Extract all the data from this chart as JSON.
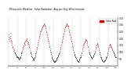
{
  "title": "Milwaukee Weather  Solar Radiation",
  "subtitle": "Avg per Day W/m²/minute",
  "background_color": "#ffffff",
  "grid_color": "#888888",
  "ylim": [
    0,
    350
  ],
  "xlim": [
    0,
    365
  ],
  "legend_label": "Solar Rad",
  "legend_color": "#cc0000",
  "dot_color_red": "#cc0000",
  "dot_color_black": "#000000",
  "month_starts": [
    1,
    32,
    60,
    91,
    121,
    152,
    182,
    213,
    244,
    274,
    305,
    335
  ],
  "yticks": [
    50,
    100,
    150,
    200,
    250,
    300,
    350
  ],
  "solar_data": [
    210,
    195,
    230,
    205,
    185,
    220,
    240,
    200,
    175,
    190,
    165,
    180,
    155,
    140,
    130,
    145,
    120,
    110,
    105,
    125,
    115,
    100,
    90,
    95,
    80,
    85,
    75,
    70,
    65,
    60,
    70,
    65,
    55,
    60,
    50,
    55,
    45,
    50,
    60,
    55,
    65,
    70,
    80,
    90,
    95,
    100,
    110,
    120,
    130,
    140,
    150,
    145,
    160,
    170,
    165,
    155,
    175,
    180,
    185,
    190,
    200,
    195,
    185,
    175,
    165,
    155,
    160,
    170,
    155,
    145,
    135,
    125,
    115,
    105,
    95,
    90,
    85,
    75,
    70,
    65,
    60,
    55,
    50,
    45,
    40,
    45,
    50,
    55,
    60,
    70,
    80,
    90,
    100,
    110,
    120,
    130,
    140,
    150,
    160,
    170,
    180,
    190,
    200,
    210,
    220,
    230,
    240,
    250,
    255,
    260,
    265,
    270,
    275,
    280,
    285,
    290,
    295,
    300,
    305,
    310,
    305,
    300,
    295,
    285,
    275,
    265,
    255,
    245,
    235,
    225,
    215,
    205,
    195,
    185,
    175,
    165,
    155,
    145,
    135,
    125,
    115,
    105,
    95,
    85,
    75,
    65,
    55,
    50,
    45,
    40,
    38,
    35,
    32,
    30,
    28,
    30,
    32,
    35,
    38,
    40,
    45,
    50,
    55,
    60,
    65,
    70,
    75,
    80,
    85,
    90,
    95,
    100,
    110,
    120,
    130,
    140,
    150,
    160,
    170,
    180,
    190,
    200,
    210,
    220,
    230,
    240,
    250,
    260,
    270,
    280,
    285,
    290,
    295,
    300,
    305,
    310,
    305,
    300,
    295,
    290,
    285,
    275,
    265,
    255,
    245,
    235,
    225,
    215,
    205,
    195,
    185,
    175,
    165,
    155,
    145,
    135,
    125,
    115,
    105,
    95,
    85,
    80,
    75,
    70,
    65,
    60,
    55,
    50,
    45,
    40,
    38,
    35,
    32,
    30,
    28,
    32,
    38,
    45,
    50,
    55,
    60,
    65,
    70,
    80,
    90,
    100,
    110,
    120,
    130,
    140,
    150,
    155,
    160,
    165,
    170,
    175,
    180,
    185,
    190,
    195,
    190,
    185,
    175,
    165,
    155,
    145,
    135,
    125,
    115,
    105,
    95,
    90,
    85,
    80,
    75,
    70,
    65,
    60,
    55,
    50,
    55,
    60,
    65,
    70,
    75,
    80,
    85,
    90,
    95,
    100,
    110,
    120,
    130,
    140,
    150,
    155,
    160,
    165,
    160,
    155,
    145,
    135,
    125,
    115,
    105,
    95,
    85,
    75,
    65,
    60,
    55,
    50,
    45,
    40,
    38,
    35,
    32,
    30,
    28,
    30,
    32,
    35,
    38,
    40,
    45,
    50,
    55,
    60,
    65,
    70,
    80,
    90,
    100,
    110,
    120,
    130,
    140,
    150,
    155,
    160,
    155,
    150,
    145,
    140,
    135,
    130,
    125,
    120,
    115,
    110,
    105,
    100,
    95,
    90,
    85,
    80,
    75,
    70,
    65,
    60
  ]
}
